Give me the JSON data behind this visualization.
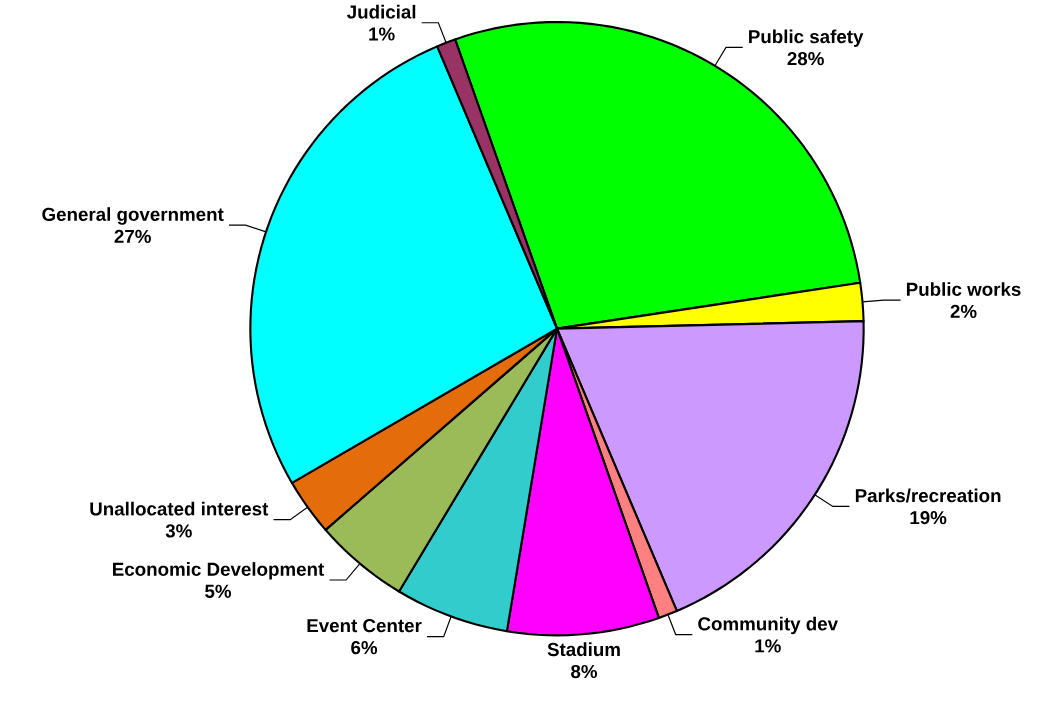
{
  "chart_data": {
    "type": "pie",
    "categories": [
      "Public safety",
      "Public works",
      "Parks/recreation",
      "Community dev",
      "Stadium",
      "Event Center",
      "Economic Development",
      "Unallocated interest",
      "General government",
      "Judicial"
    ],
    "values": [
      28,
      2,
      19,
      1,
      8,
      6,
      5,
      3,
      27,
      1
    ],
    "value_labels": [
      "28%",
      "2%",
      "19%",
      "1%",
      "8%",
      "6%",
      "5%",
      "3%",
      "27%",
      "1%"
    ],
    "colors": [
      "#00ff00",
      "#ffff00",
      "#cc99ff",
      "#ff8080",
      "#ff00ff",
      "#33cccc",
      "#9bbb59",
      "#e46c0a",
      "#00ffff",
      "#993366"
    ]
  }
}
